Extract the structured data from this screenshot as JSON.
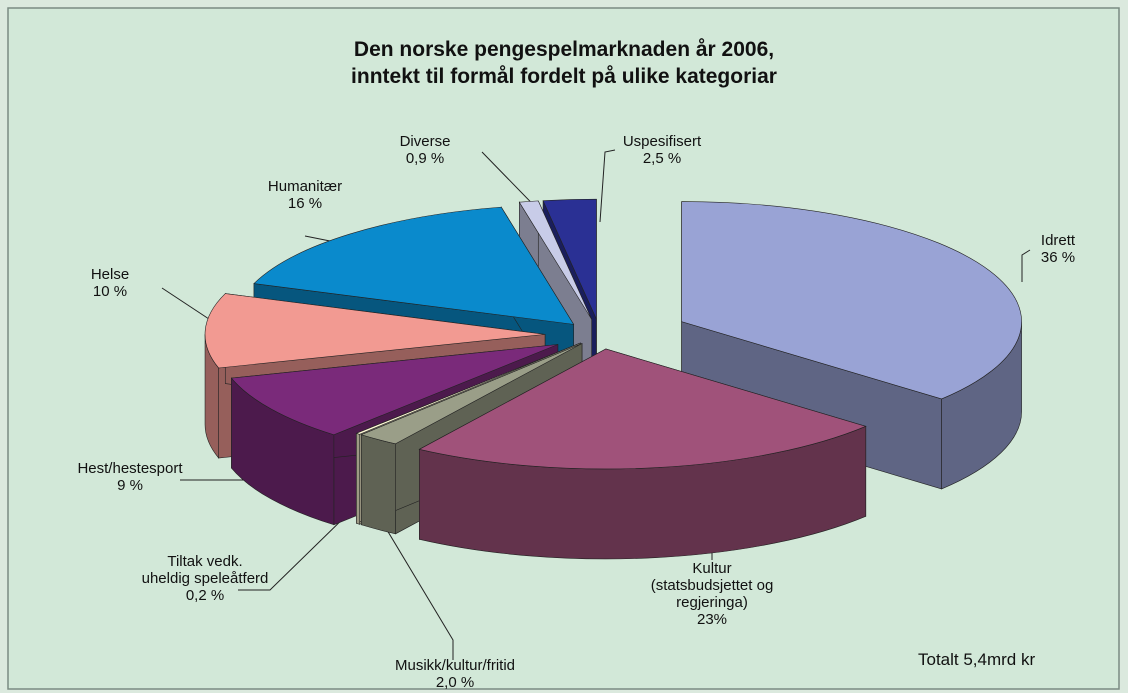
{
  "chart_data": {
    "type": "pie3d",
    "title": "Den norske pengespelmarknaden år 2006,\ninntekt til formål fordelt på ulike kategoriar",
    "categories": [
      "Idrett",
      "Kultur\n(statsbudsjettet og\nregjeringa)",
      "Musikk/kultur/fritid",
      "Tiltak vedk.\nuheldig speleåtferd",
      "Hest/hestesport",
      "Helse",
      "Humanitær",
      "Diverse",
      "Uspesifisert"
    ],
    "values": [
      36,
      23,
      2.0,
      0.2,
      9,
      10,
      16,
      0.9,
      2.5
    ],
    "value_labels": [
      "36 %",
      "23%",
      "2,0 %",
      "0,2 %",
      "9 %",
      "10 %",
      "16 %",
      "0,9 %",
      "2,5 %"
    ],
    "colors": [
      "#99a3d5",
      "#a0527a",
      "#9a9e88",
      "#fff8d6",
      "#7a2a7a",
      "#f29a92",
      "#0a8acc",
      "#c8cce8",
      "#2a3094"
    ],
    "annotation": "Totalt 5,4mrd kr"
  }
}
